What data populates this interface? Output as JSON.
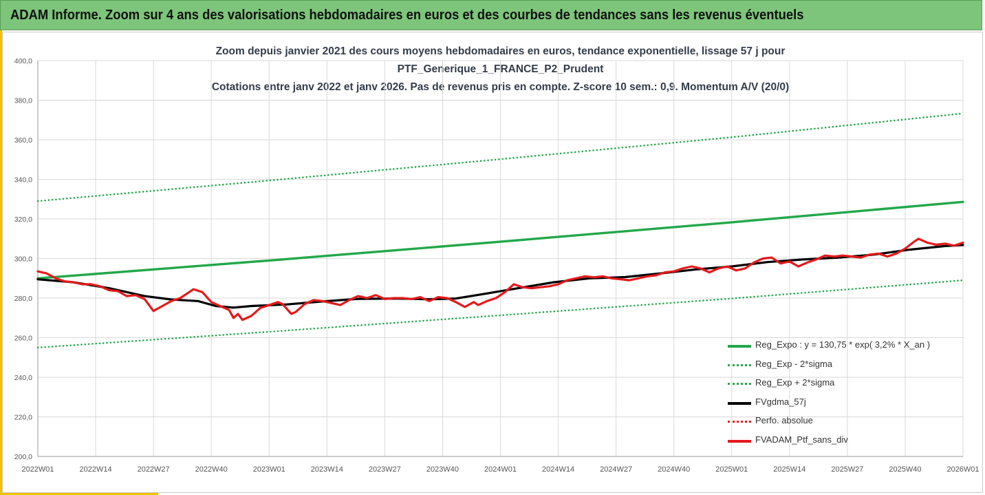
{
  "header": {
    "title": "ADAM Informe. Zoom sur 4 ans des valorisations hebdomadaires en euros et des courbes de tendances sans les revenus éventuels"
  },
  "colors": {
    "banner": "#7dc57a",
    "reg_expo": "#22a84a",
    "reg_sigma": "#22a84a",
    "moving_avg": "#000000",
    "perfo": "#e31a1c",
    "portfolio": "#e31a1c"
  },
  "chart_data": {
    "type": "line",
    "title_lines": [
      "Zoom depuis janvier 2021 des cours moyens hebdomadaires  en euros, tendance exponentielle, lissage 57 j pour",
      "PTF_Generique_1_FRANCE_P2_Prudent",
      "Cotations entre janv 2022 et janv 2026. Pas de revenus pris en compte. Z-score 10 sem.: 0,9. Momentum A/V (20/0)"
    ],
    "ylim": [
      200,
      400
    ],
    "y_ticks": [
      "200,0",
      "220,0",
      "240,0",
      "260,0",
      "280,0",
      "300,0",
      "320,0",
      "340,0",
      "360,0",
      "380,0",
      "400,0"
    ],
    "x_ticks": [
      "2022W01",
      "2022W14",
      "2022W27",
      "2022W40",
      "2023W01",
      "2023W14",
      "2023W27",
      "2023W40",
      "2024W01",
      "2024W14",
      "2024W27",
      "2024W40",
      "2025W01",
      "2025W14",
      "2025W27",
      "2025W40",
      "2026W01"
    ],
    "x_tick_weeks": [
      0,
      13,
      26,
      39,
      52,
      65,
      78,
      91,
      104,
      117,
      130,
      143,
      156,
      169,
      182,
      195,
      208
    ],
    "x_range_weeks": [
      0,
      208
    ],
    "series": [
      {
        "name": "Reg_Expo : y = 130,75 * exp( 3,2% *  X_an )",
        "style": "solid",
        "color": "#22a84a",
        "points": [
          [
            0,
            290
          ],
          [
            52,
            299
          ],
          [
            104,
            308.5
          ],
          [
            156,
            318.3
          ],
          [
            208,
            328.6
          ]
        ]
      },
      {
        "name": "Reg_Exp - 2*sigma",
        "style": "dotted",
        "color": "#22a84a",
        "points": [
          [
            0,
            255
          ],
          [
            52,
            263
          ],
          [
            104,
            271.3
          ],
          [
            156,
            279.8
          ],
          [
            208,
            289
          ]
        ]
      },
      {
        "name": "Reg_Exp + 2*sigma",
        "style": "dotted",
        "color": "#22a84a",
        "points": [
          [
            0,
            329
          ],
          [
            52,
            339.4
          ],
          [
            104,
            350.2
          ],
          [
            156,
            361.3
          ],
          [
            208,
            373.3
          ]
        ]
      },
      {
        "name": "FVgdma_57j",
        "style": "solid",
        "color": "#000000",
        "points": [
          [
            0,
            289.5
          ],
          [
            8,
            288
          ],
          [
            16,
            285
          ],
          [
            24,
            281
          ],
          [
            30,
            279.3
          ],
          [
            36,
            278.5
          ],
          [
            40,
            276
          ],
          [
            44,
            275.2
          ],
          [
            48,
            276
          ],
          [
            56,
            276.8
          ],
          [
            64,
            278.3
          ],
          [
            72,
            279.6
          ],
          [
            80,
            279.8
          ],
          [
            88,
            279.4
          ],
          [
            94,
            279.8
          ],
          [
            100,
            282
          ],
          [
            108,
            285
          ],
          [
            116,
            288
          ],
          [
            124,
            290
          ],
          [
            132,
            290.6
          ],
          [
            140,
            292.5
          ],
          [
            148,
            294.5
          ],
          [
            156,
            296
          ],
          [
            164,
            298.2
          ],
          [
            172,
            299.5
          ],
          [
            180,
            300.5
          ],
          [
            188,
            302
          ],
          [
            196,
            304.5
          ],
          [
            204,
            306.3
          ],
          [
            208,
            306.8
          ]
        ]
      },
      {
        "name": "Perfo. absolue",
        "style": "dotted",
        "color": "#e31a1c",
        "points": []
      },
      {
        "name": "FVADAM_Ptf_sans_div",
        "style": "solid",
        "color": "#e31a1c",
        "points": [
          [
            0,
            293.5
          ],
          [
            2,
            292.5
          ],
          [
            4,
            290
          ],
          [
            6,
            288.5
          ],
          [
            8,
            288
          ],
          [
            10,
            287
          ],
          [
            12,
            287
          ],
          [
            14,
            286
          ],
          [
            16,
            284
          ],
          [
            18,
            283.5
          ],
          [
            20,
            281
          ],
          [
            22,
            281.5
          ],
          [
            24,
            279.5
          ],
          [
            26,
            273.5
          ],
          [
            28,
            276
          ],
          [
            30,
            278.5
          ],
          [
            32,
            280
          ],
          [
            34,
            283
          ],
          [
            35,
            284.5
          ],
          [
            37,
            283
          ],
          [
            39,
            278
          ],
          [
            41,
            276
          ],
          [
            43,
            274
          ],
          [
            44,
            270
          ],
          [
            45,
            272
          ],
          [
            46,
            269
          ],
          [
            48,
            271
          ],
          [
            50,
            275
          ],
          [
            52,
            276.5
          ],
          [
            54,
            278
          ],
          [
            55,
            277
          ],
          [
            57,
            272
          ],
          [
            58,
            273
          ],
          [
            60,
            277
          ],
          [
            62,
            279
          ],
          [
            64,
            278.5
          ],
          [
            66,
            277.5
          ],
          [
            68,
            276.5
          ],
          [
            70,
            279
          ],
          [
            72,
            281
          ],
          [
            74,
            280
          ],
          [
            76,
            281.5
          ],
          [
            78,
            279.5
          ],
          [
            80,
            280
          ],
          [
            82,
            280
          ],
          [
            84,
            279.5
          ],
          [
            86,
            280.5
          ],
          [
            88,
            278.5
          ],
          [
            90,
            280.5
          ],
          [
            92,
            280
          ],
          [
            94,
            278
          ],
          [
            96,
            275.5
          ],
          [
            98,
            278
          ],
          [
            99,
            276.5
          ],
          [
            101,
            278.5
          ],
          [
            103,
            280
          ],
          [
            105,
            283
          ],
          [
            107,
            287
          ],
          [
            109,
            285.5
          ],
          [
            111,
            285
          ],
          [
            113,
            285.5
          ],
          [
            115,
            286
          ],
          [
            117,
            287
          ],
          [
            119,
            289
          ],
          [
            121,
            290
          ],
          [
            123,
            291
          ],
          [
            125,
            290.5
          ],
          [
            127,
            291
          ],
          [
            129,
            290
          ],
          [
            131,
            289.5
          ],
          [
            133,
            289
          ],
          [
            135,
            290
          ],
          [
            137,
            291
          ],
          [
            139,
            291.5
          ],
          [
            141,
            293
          ],
          [
            143,
            293.5
          ],
          [
            145,
            295
          ],
          [
            147,
            296
          ],
          [
            149,
            295
          ],
          [
            151,
            293
          ],
          [
            153,
            295
          ],
          [
            155,
            296
          ],
          [
            157,
            294
          ],
          [
            159,
            295
          ],
          [
            161,
            298
          ],
          [
            163,
            300
          ],
          [
            165,
            300.5
          ],
          [
            167,
            297.5
          ],
          [
            169,
            298.5
          ],
          [
            171,
            296
          ],
          [
            173,
            298
          ],
          [
            175,
            299.5
          ],
          [
            177,
            301.5
          ],
          [
            179,
            301
          ],
          [
            181,
            301.5
          ],
          [
            183,
            301
          ],
          [
            185,
            300.5
          ],
          [
            187,
            302
          ],
          [
            189,
            302.5
          ],
          [
            191,
            301
          ],
          [
            193,
            302.5
          ],
          [
            195,
            305
          ],
          [
            197,
            308.5
          ],
          [
            198,
            310
          ],
          [
            200,
            308
          ],
          [
            202,
            307
          ],
          [
            204,
            307.5
          ],
          [
            206,
            306.5
          ],
          [
            208,
            308
          ]
        ]
      }
    ]
  },
  "legend": [
    {
      "label": "Reg_Expo : y = 130,75 * exp( 3,2% *  X_an )",
      "style": "solid",
      "color": "#22a84a"
    },
    {
      "label": "Reg_Exp - 2*sigma",
      "style": "dotted",
      "color": "#22a84a"
    },
    {
      "label": "Reg_Exp + 2*sigma",
      "style": "dotted",
      "color": "#22a84a"
    },
    {
      "label": "FVgdma_57j",
      "style": "solid",
      "color": "#000000"
    },
    {
      "label": "Perfo. absolue",
      "style": "dotted",
      "color": "#e31a1c"
    },
    {
      "label": "FVADAM_Ptf_sans_div",
      "style": "solid",
      "color": "#e31a1c"
    }
  ]
}
